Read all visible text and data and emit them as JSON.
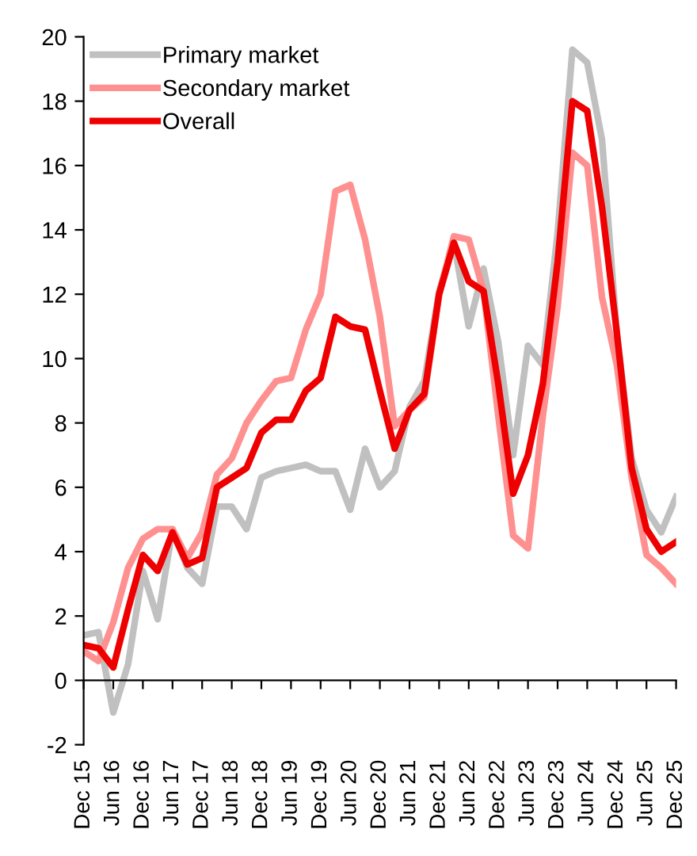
{
  "chart_data": {
    "type": "line",
    "categories": [
      "Dec 15",
      null,
      "Jun 16",
      null,
      "Dec 16",
      null,
      "Jun 17",
      null,
      "Dec 17",
      null,
      "Jun 18",
      null,
      "Dec 18",
      null,
      "Jun 19",
      null,
      "Dec 19",
      null,
      "Jun 20",
      null,
      "Dec 20",
      null,
      "Jun 21",
      null,
      "Dec 21",
      null,
      "Jun 22",
      null,
      "Dec 22",
      null,
      "Jun 23",
      null,
      "Dec 23",
      null,
      "Jun 24",
      null,
      "Dec 24",
      null,
      "Jun 25",
      null,
      "Dec 25"
    ],
    "series": [
      {
        "name": "Primary market",
        "color": "#c0c0c0",
        "values": [
          1.4,
          1.5,
          -1.0,
          0.5,
          3.4,
          1.9,
          4.7,
          3.5,
          3.0,
          5.4,
          5.4,
          4.7,
          6.3,
          6.5,
          6.6,
          6.7,
          6.5,
          6.5,
          5.3,
          7.2,
          6.0,
          6.5,
          8.5,
          9.3,
          12.1,
          13.6,
          11.0,
          12.8,
          10.5,
          7.0,
          10.4,
          9.8,
          13.9,
          19.6,
          19.2,
          16.8,
          10.8,
          6.9,
          5.3,
          4.6,
          5.7
        ]
      },
      {
        "name": "Secondary market",
        "color": "#ff9090",
        "values": [
          0.9,
          0.6,
          1.8,
          3.5,
          4.4,
          4.7,
          4.7,
          3.8,
          4.6,
          6.4,
          6.9,
          8.0,
          8.7,
          9.3,
          9.4,
          10.9,
          12.0,
          15.2,
          15.4,
          13.7,
          11.3,
          7.9,
          8.4,
          8.8,
          12.0,
          13.8,
          13.7,
          12.1,
          8.2,
          4.5,
          4.1,
          8.2,
          11.6,
          16.4,
          16.0,
          11.9,
          9.8,
          6.3,
          3.9,
          3.5,
          3.0
        ]
      },
      {
        "name": "Overall",
        "color": "#ee0000",
        "values": [
          1.1,
          1.0,
          0.4,
          2.2,
          3.9,
          3.4,
          4.6,
          3.6,
          3.8,
          6.0,
          6.3,
          6.6,
          7.7,
          8.1,
          8.1,
          9.0,
          9.4,
          11.3,
          11.0,
          10.9,
          9.0,
          7.2,
          8.4,
          8.9,
          12.0,
          13.6,
          12.4,
          12.1,
          9.2,
          5.8,
          7.0,
          9.2,
          13.0,
          18.0,
          17.7,
          14.7,
          10.8,
          6.6,
          4.7,
          4.0,
          4.3
        ]
      }
    ],
    "ylim": [
      -2,
      20
    ],
    "yticks": [
      -2,
      0,
      2,
      4,
      6,
      8,
      10,
      12,
      14,
      16,
      18,
      20
    ],
    "legend": "top left",
    "marker": "none",
    "line_style": "solid"
  }
}
